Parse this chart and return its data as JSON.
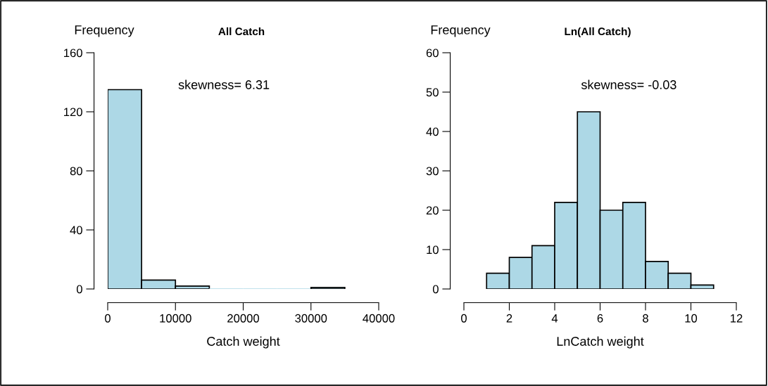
{
  "chart_data": [
    {
      "type": "histogram",
      "title": "All Catch",
      "ylabel": "Frequency",
      "xlabel": "Catch weight",
      "bins": [
        0,
        5000,
        10000,
        15000,
        20000,
        25000,
        30000,
        35000
      ],
      "values": [
        135,
        6,
        2,
        0,
        0,
        0,
        1
      ],
      "color": "#add8e6",
      "xlim": [
        0,
        40000
      ],
      "xticks": [
        0,
        10000,
        20000,
        30000,
        40000
      ],
      "ylim": [
        0,
        160
      ],
      "yticks": [
        0,
        40,
        80,
        120,
        160
      ],
      "annotations": [
        "skewness= 6.31"
      ]
    },
    {
      "type": "histogram",
      "title": "Ln(All Catch)",
      "ylabel": "Frequency",
      "xlabel": "LnCatch weight",
      "bins": [
        1,
        2,
        3,
        4,
        5,
        6,
        7,
        8,
        9,
        10,
        11
      ],
      "values": [
        4,
        8,
        11,
        22,
        45,
        20,
        22,
        7,
        4,
        1
      ],
      "color": "#add8e6",
      "xlim": [
        0,
        12
      ],
      "xticks": [
        0,
        2,
        4,
        6,
        8,
        10,
        12
      ],
      "ylim": [
        0,
        60
      ],
      "yticks": [
        0,
        10,
        20,
        30,
        40,
        50,
        60
      ],
      "annotations": [
        "skewness= -0.03"
      ]
    }
  ]
}
